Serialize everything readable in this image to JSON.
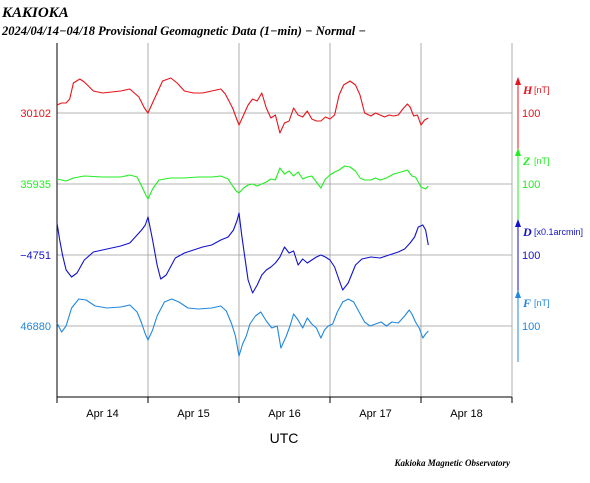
{
  "header": {
    "station": "KAKIOKA",
    "subtitle": "2024/04/14−04/18  Provisional Geomagnetic Data (1−min)  − Normal −"
  },
  "footer": {
    "credit": "Kakioka Magnetic Observatory"
  },
  "colors": {
    "H": "#e8141b",
    "Z": "#22ee22",
    "D": "#1212cc",
    "F": "#2288dd",
    "grid": "#9a9a9a",
    "axis": "#000000"
  },
  "chart_data": {
    "type": "line",
    "xlabel": "UTC",
    "x_ticks": [
      "Apr 14",
      "Apr 15",
      "Apr 16",
      "Apr 17",
      "Apr 18"
    ],
    "x_range_days": [
      14.0,
      19.0
    ],
    "series": [
      {
        "name": "H",
        "unit": "[nT]",
        "baseline": 30102,
        "scale_label": "100",
        "points": [
          [
            14.0,
            8
          ],
          [
            14.05,
            10
          ],
          [
            14.1,
            10
          ],
          [
            14.14,
            14
          ],
          [
            14.18,
            30
          ],
          [
            14.25,
            34
          ],
          [
            14.3,
            31
          ],
          [
            14.4,
            22
          ],
          [
            14.5,
            20
          ],
          [
            14.6,
            21
          ],
          [
            14.7,
            22
          ],
          [
            14.8,
            24
          ],
          [
            14.9,
            16
          ],
          [
            14.96,
            5
          ],
          [
            15.0,
            0
          ],
          [
            15.04,
            8
          ],
          [
            15.1,
            20
          ],
          [
            15.16,
            32
          ],
          [
            15.25,
            35
          ],
          [
            15.32,
            30
          ],
          [
            15.4,
            22
          ],
          [
            15.5,
            20
          ],
          [
            15.6,
            20
          ],
          [
            15.7,
            22
          ],
          [
            15.8,
            24
          ],
          [
            15.85,
            19
          ],
          [
            15.93,
            5
          ],
          [
            15.97,
            -5
          ],
          [
            16.0,
            -12
          ],
          [
            16.05,
            -2
          ],
          [
            16.1,
            8
          ],
          [
            16.15,
            14
          ],
          [
            16.2,
            12
          ],
          [
            16.25,
            20
          ],
          [
            16.3,
            5
          ],
          [
            16.35,
            -5
          ],
          [
            16.4,
            -2
          ],
          [
            16.45,
            -20
          ],
          [
            16.5,
            -10
          ],
          [
            16.55,
            -8
          ],
          [
            16.6,
            5
          ],
          [
            16.65,
            -2
          ],
          [
            16.7,
            -4
          ],
          [
            16.75,
            2
          ],
          [
            16.8,
            -6
          ],
          [
            16.85,
            -8
          ],
          [
            16.9,
            -8
          ],
          [
            16.95,
            -4
          ],
          [
            17.0,
            -6
          ],
          [
            17.05,
            -2
          ],
          [
            17.1,
            18
          ],
          [
            17.15,
            28
          ],
          [
            17.22,
            32
          ],
          [
            17.28,
            28
          ],
          [
            17.33,
            18
          ],
          [
            17.38,
            0
          ],
          [
            17.45,
            -3
          ],
          [
            17.5,
            0
          ],
          [
            17.55,
            -2
          ],
          [
            17.6,
            -4
          ],
          [
            17.65,
            -2
          ],
          [
            17.7,
            -3
          ],
          [
            17.75,
            -2
          ],
          [
            17.8,
            4
          ],
          [
            17.85,
            9
          ],
          [
            17.88,
            6
          ],
          [
            17.92,
            -3
          ],
          [
            17.96,
            -2
          ],
          [
            18.0,
            -12
          ],
          [
            18.04,
            -7
          ],
          [
            18.08,
            -5
          ]
        ]
      },
      {
        "name": "Z",
        "unit": "[nT]",
        "baseline": 35935,
        "scale_label": "100",
        "points": [
          [
            14.0,
            5
          ],
          [
            14.05,
            4
          ],
          [
            14.1,
            3
          ],
          [
            14.18,
            6
          ],
          [
            14.3,
            8
          ],
          [
            14.5,
            7
          ],
          [
            14.7,
            7
          ],
          [
            14.8,
            9
          ],
          [
            14.88,
            7
          ],
          [
            14.93,
            -2
          ],
          [
            14.97,
            -10
          ],
          [
            15.0,
            -15
          ],
          [
            15.05,
            -5
          ],
          [
            15.12,
            4
          ],
          [
            15.25,
            6
          ],
          [
            15.4,
            6
          ],
          [
            15.55,
            7
          ],
          [
            15.7,
            7
          ],
          [
            15.8,
            8
          ],
          [
            15.88,
            5
          ],
          [
            15.93,
            -2
          ],
          [
            15.97,
            -7
          ],
          [
            16.0,
            -9
          ],
          [
            16.05,
            -4
          ],
          [
            16.1,
            -1
          ],
          [
            16.15,
            0
          ],
          [
            16.2,
            -2
          ],
          [
            16.3,
            2
          ],
          [
            16.35,
            5
          ],
          [
            16.4,
            4
          ],
          [
            16.45,
            16
          ],
          [
            16.5,
            10
          ],
          [
            16.55,
            13
          ],
          [
            16.6,
            8
          ],
          [
            16.65,
            12
          ],
          [
            16.7,
            5
          ],
          [
            16.75,
            7
          ],
          [
            16.8,
            8
          ],
          [
            16.85,
            2
          ],
          [
            16.9,
            -4
          ],
          [
            16.95,
            5
          ],
          [
            17.0,
            9
          ],
          [
            17.05,
            12
          ],
          [
            17.1,
            14
          ],
          [
            17.16,
            18
          ],
          [
            17.22,
            17
          ],
          [
            17.28,
            13
          ],
          [
            17.33,
            6
          ],
          [
            17.38,
            4
          ],
          [
            17.45,
            4
          ],
          [
            17.5,
            6
          ],
          [
            17.55,
            4
          ],
          [
            17.62,
            6
          ],
          [
            17.7,
            10
          ],
          [
            17.78,
            12
          ],
          [
            17.85,
            14
          ],
          [
            17.9,
            8
          ],
          [
            17.94,
            7
          ],
          [
            18.0,
            -3
          ],
          [
            18.05,
            -5
          ],
          [
            18.08,
            -2
          ]
        ]
      },
      {
        "name": "D",
        "unit": "[x0.1arcmin]",
        "baseline": -4751,
        "scale_label": "100",
        "points": [
          [
            14.0,
            32
          ],
          [
            14.03,
            15
          ],
          [
            14.06,
            0
          ],
          [
            14.1,
            -15
          ],
          [
            14.16,
            -22
          ],
          [
            14.22,
            -18
          ],
          [
            14.3,
            -5
          ],
          [
            14.4,
            3
          ],
          [
            14.5,
            5
          ],
          [
            14.6,
            7
          ],
          [
            14.7,
            9
          ],
          [
            14.8,
            12
          ],
          [
            14.88,
            20
          ],
          [
            14.93,
            25
          ],
          [
            14.97,
            30
          ],
          [
            15.0,
            38
          ],
          [
            15.05,
            15
          ],
          [
            15.1,
            -10
          ],
          [
            15.14,
            -24
          ],
          [
            15.2,
            -20
          ],
          [
            15.3,
            -3
          ],
          [
            15.4,
            2
          ],
          [
            15.5,
            5
          ],
          [
            15.6,
            8
          ],
          [
            15.7,
            10
          ],
          [
            15.8,
            15
          ],
          [
            15.88,
            18
          ],
          [
            15.94,
            25
          ],
          [
            15.98,
            35
          ],
          [
            16.0,
            42
          ],
          [
            16.03,
            20
          ],
          [
            16.06,
            0
          ],
          [
            16.1,
            -25
          ],
          [
            16.15,
            -38
          ],
          [
            16.2,
            -30
          ],
          [
            16.25,
            -20
          ],
          [
            16.3,
            -15
          ],
          [
            16.35,
            -12
          ],
          [
            16.4,
            -8
          ],
          [
            16.45,
            -2
          ],
          [
            16.5,
            8
          ],
          [
            16.55,
            2
          ],
          [
            16.6,
            4
          ],
          [
            16.65,
            -10
          ],
          [
            16.7,
            -4
          ],
          [
            16.75,
            -8
          ],
          [
            16.8,
            -5
          ],
          [
            16.85,
            -2
          ],
          [
            16.9,
            0
          ],
          [
            16.95,
            -2
          ],
          [
            17.0,
            -5
          ],
          [
            17.05,
            -12
          ],
          [
            17.1,
            -25
          ],
          [
            17.14,
            -35
          ],
          [
            17.2,
            -28
          ],
          [
            17.28,
            -10
          ],
          [
            17.35,
            -4
          ],
          [
            17.45,
            -2
          ],
          [
            17.55,
            -3
          ],
          [
            17.65,
            0
          ],
          [
            17.75,
            3
          ],
          [
            17.82,
            6
          ],
          [
            17.88,
            12
          ],
          [
            17.93,
            18
          ],
          [
            17.97,
            28
          ],
          [
            18.02,
            30
          ],
          [
            18.05,
            25
          ],
          [
            18.08,
            10
          ]
        ]
      },
      {
        "name": "F",
        "unit": "[nT]",
        "baseline": 46880,
        "scale_label": "100",
        "points": [
          [
            14.0,
            3
          ],
          [
            14.05,
            -6
          ],
          [
            14.1,
            0
          ],
          [
            14.16,
            18
          ],
          [
            14.24,
            27
          ],
          [
            14.32,
            26
          ],
          [
            14.42,
            20
          ],
          [
            14.55,
            18
          ],
          [
            14.7,
            19
          ],
          [
            14.8,
            21
          ],
          [
            14.88,
            14
          ],
          [
            14.93,
            3
          ],
          [
            14.97,
            -8
          ],
          [
            15.0,
            -14
          ],
          [
            15.05,
            -4
          ],
          [
            15.1,
            10
          ],
          [
            15.18,
            24
          ],
          [
            15.26,
            27
          ],
          [
            15.34,
            24
          ],
          [
            15.44,
            18
          ],
          [
            15.55,
            17
          ],
          [
            15.7,
            18
          ],
          [
            15.8,
            20
          ],
          [
            15.86,
            15
          ],
          [
            15.92,
            2
          ],
          [
            15.96,
            -10
          ],
          [
            16.0,
            -30
          ],
          [
            16.04,
            -18
          ],
          [
            16.08,
            -10
          ],
          [
            16.12,
            2
          ],
          [
            16.18,
            10
          ],
          [
            16.24,
            14
          ],
          [
            16.3,
            5
          ],
          [
            16.36,
            -2
          ],
          [
            16.42,
            0
          ],
          [
            16.46,
            -22
          ],
          [
            16.52,
            -10
          ],
          [
            16.56,
            0
          ],
          [
            16.6,
            12
          ],
          [
            16.65,
            6
          ],
          [
            16.7,
            -2
          ],
          [
            16.75,
            8
          ],
          [
            16.8,
            2
          ],
          [
            16.85,
            -2
          ],
          [
            16.9,
            -12
          ],
          [
            16.94,
            -4
          ],
          [
            16.98,
            0
          ],
          [
            17.03,
            2
          ],
          [
            17.08,
            14
          ],
          [
            17.14,
            24
          ],
          [
            17.2,
            27
          ],
          [
            17.26,
            24
          ],
          [
            17.32,
            14
          ],
          [
            17.38,
            4
          ],
          [
            17.44,
            0
          ],
          [
            17.5,
            2
          ],
          [
            17.56,
            4
          ],
          [
            17.62,
            0
          ],
          [
            17.68,
            4
          ],
          [
            17.75,
            3
          ],
          [
            17.82,
            10
          ],
          [
            17.87,
            16
          ],
          [
            17.9,
            12
          ],
          [
            17.94,
            4
          ],
          [
            17.98,
            -2
          ],
          [
            18.02,
            -12
          ],
          [
            18.05,
            -8
          ],
          [
            18.08,
            -5
          ]
        ]
      }
    ]
  }
}
